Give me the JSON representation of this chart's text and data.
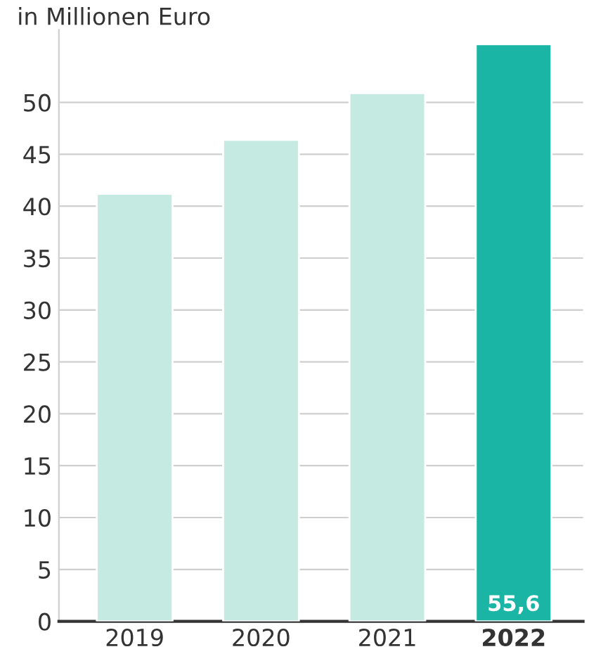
{
  "chart_data": {
    "type": "bar",
    "ylabel": "in Millionen Euro",
    "categories": [
      "2019",
      "2020",
      "2021",
      "2022"
    ],
    "values": [
      41.2,
      46.4,
      50.9,
      55.6
    ],
    "colors": [
      "#c5eae2",
      "#c5eae2",
      "#c5eae2",
      "#1ab5a5"
    ],
    "value_labels": [
      null,
      null,
      null,
      "55,6"
    ],
    "ylim": [
      0,
      57
    ],
    "yticks": [
      0,
      5,
      10,
      15,
      20,
      25,
      30,
      35,
      40,
      45,
      50
    ],
    "grid": "y",
    "legend": false
  }
}
